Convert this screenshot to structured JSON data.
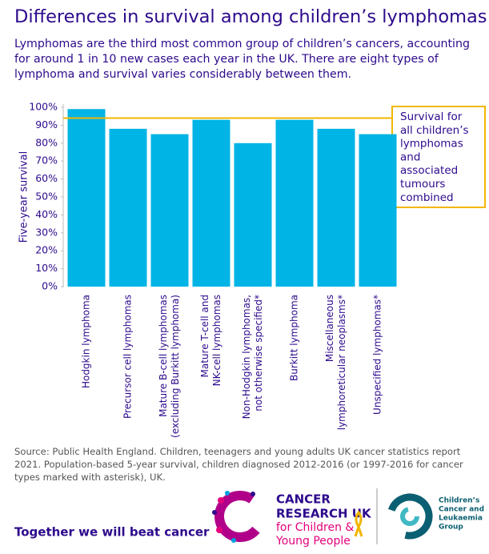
{
  "chart_data": {
    "type": "bar",
    "title": "Differences in survival among children’s lymphomas",
    "subtitle": "Lymphomas are the third most common group of children’s cancers, accounting for around 1 in 10 new cases each year in the UK. There are eight types of lymphoma and survival varies considerably between them.",
    "y_label": "Five-year survival",
    "categories": [
      [
        "Hodgkin lymphoma"
      ],
      [
        "Precursor cell lymphomas"
      ],
      [
        "Mature B-cell lymphomas",
        "(excluding Burkitt lymphoma)"
      ],
      [
        "Mature T-cell and",
        "NK-cell lymphomas"
      ],
      [
        "Non-Hodgkin lymphomas,",
        "not otherwise specified*"
      ],
      [
        "Burkitt lymphoma"
      ],
      [
        "Miscellaneous",
        "lymphoreticular neoplasms*"
      ],
      [
        "Unspecified lymphomas*"
      ]
    ],
    "values": [
      99,
      88,
      85,
      93,
      80,
      93,
      88,
      85
    ],
    "color": "#00b4e6",
    "ylim": [
      0,
      100
    ],
    "yticks": [
      {
        "value": 0,
        "label": "0%"
      },
      {
        "value": 10,
        "label": "10%"
      },
      {
        "value": 20,
        "label": "20%"
      },
      {
        "value": 30,
        "label": "30%"
      },
      {
        "value": 40,
        "label": "40%"
      },
      {
        "value": 50,
        "label": "50%"
      },
      {
        "value": 60,
        "label": "60%"
      },
      {
        "value": 70,
        "label": "70%"
      },
      {
        "value": 80,
        "label": "80%"
      },
      {
        "value": 90,
        "label": "90%"
      },
      {
        "value": 100,
        "label": "100%"
      }
    ],
    "reference_line": {
      "value": 94,
      "color": "#f2b600",
      "annotation": [
        "Survival for",
        "all children’s",
        "lymphomas",
        "and",
        "associated",
        "tumours",
        "combined"
      ]
    },
    "source": "Source: Public Health England. Children, teenagers and young adults UK cancer statistics report 2021. Population-based 5-year survival, children diagnosed 2012-2016 (or 1997-2016 for cancer types marked with asterisk), UK."
  },
  "footer": {
    "tagline": "Together we will beat cancer",
    "cruk": [
      "CANCER",
      "RESEARCH UK",
      "for Children &",
      "Young People"
    ],
    "cclg": [
      "Children’s",
      "Cancer and",
      "Leukaemia",
      "Group"
    ]
  }
}
